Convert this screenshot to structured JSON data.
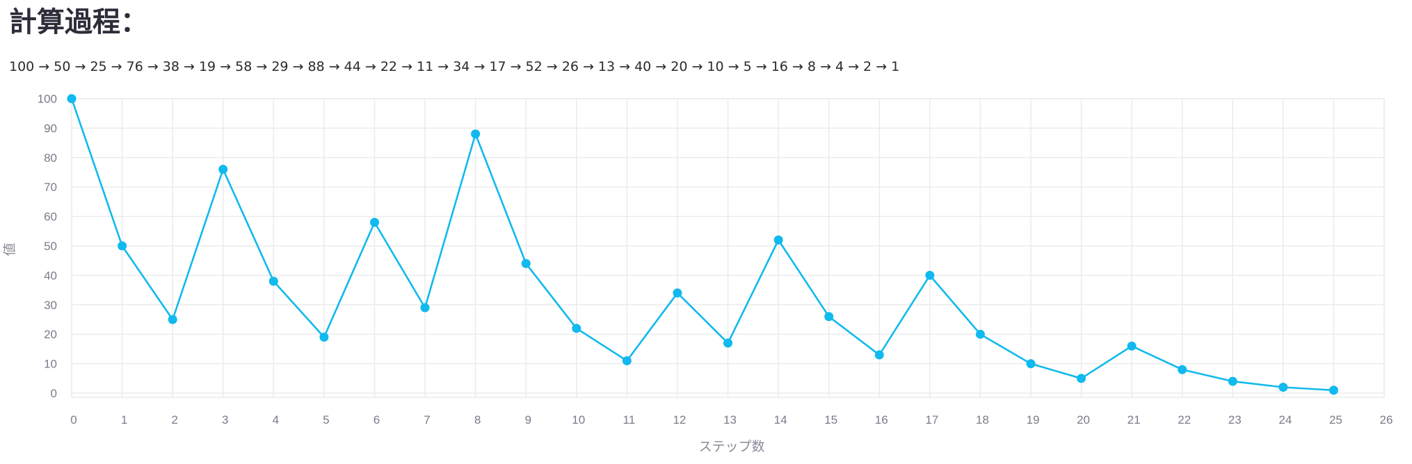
{
  "header": {
    "title": "計算過程：",
    "sequence_text": "100 → 50 → 25 → 76 → 38 → 19 → 58 → 29 → 88 → 44 → 22 → 11 → 34 → 17 → 52 → 26 → 13 → 40 → 20 → 10 → 5 → 16 → 8 → 4 → 2 → 1"
  },
  "chart_data": {
    "type": "line",
    "x": [
      0,
      1,
      2,
      3,
      4,
      5,
      6,
      7,
      8,
      9,
      10,
      11,
      12,
      13,
      14,
      15,
      16,
      17,
      18,
      19,
      20,
      21,
      22,
      23,
      24,
      25
    ],
    "series": [
      {
        "values": [
          100,
          50,
          25,
          76,
          38,
          19,
          58,
          29,
          88,
          44,
          22,
          11,
          34,
          17,
          52,
          26,
          13,
          40,
          20,
          10,
          5,
          16,
          8,
          4,
          2,
          1
        ]
      }
    ],
    "xlabel": "ステップ数",
    "ylabel": "値",
    "xticks": [
      0,
      1,
      2,
      3,
      4,
      5,
      6,
      7,
      8,
      9,
      10,
      11,
      12,
      13,
      14,
      15,
      16,
      17,
      18,
      19,
      20,
      21,
      22,
      23,
      24,
      25,
      26
    ],
    "yticks": [
      0,
      10,
      20,
      30,
      40,
      50,
      60,
      70,
      80,
      90,
      100
    ],
    "xlim": [
      0,
      26
    ],
    "ylim": [
      0,
      100
    ],
    "grid": true,
    "line_color": "#10b9ee",
    "grid_color": "#ebebeb"
  }
}
